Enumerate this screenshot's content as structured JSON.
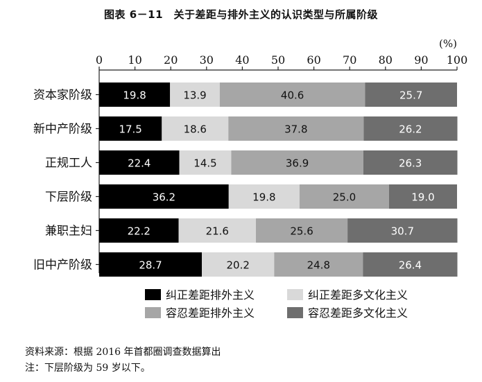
{
  "title": "图表 6－11　关于差距与排外主义的认识类型与所属阶级",
  "unit_label": "(%)",
  "source": "资料来源：根据 2016 年首都圈调查数据算出",
  "footnote": "注：下层阶级为 59 岁以下。",
  "colors": {
    "纠正差距排外主义": "#000000",
    "纠正差距多文化主义": "#d9d9d9",
    "容忍差距排外主义": "#a6a6a6",
    "容忍差距多文化主义": "#6e6e6e"
  },
  "chart_data": {
    "type": "bar",
    "orientation": "horizontal",
    "stacked": true,
    "title": "图表 6－11　关于差距与排外主义的认识类型与所属阶级",
    "xlim": [
      0,
      100
    ],
    "x_ticks": [
      0,
      10,
      20,
      30,
      40,
      50,
      60,
      70,
      80,
      90,
      100
    ],
    "categories": [
      "资本家阶级",
      "新中产阶级",
      "正规工人",
      "下层阶级",
      "兼职主妇",
      "旧中产阶级"
    ],
    "series": [
      {
        "name": "纠正差距排外主义",
        "values": [
          19.8,
          17.5,
          22.4,
          36.2,
          22.2,
          28.7
        ]
      },
      {
        "name": "纠正差距多文化主义",
        "values": [
          13.9,
          18.6,
          14.5,
          19.8,
          21.6,
          20.2
        ]
      },
      {
        "name": "容忍差距排外主义",
        "values": [
          40.6,
          37.8,
          36.9,
          25.0,
          25.6,
          24.8
        ]
      },
      {
        "name": "容忍差距多文化主义",
        "values": [
          25.7,
          26.2,
          26.3,
          19.0,
          30.7,
          26.4
        ]
      }
    ],
    "legend_position": "bottom",
    "grid": false
  }
}
